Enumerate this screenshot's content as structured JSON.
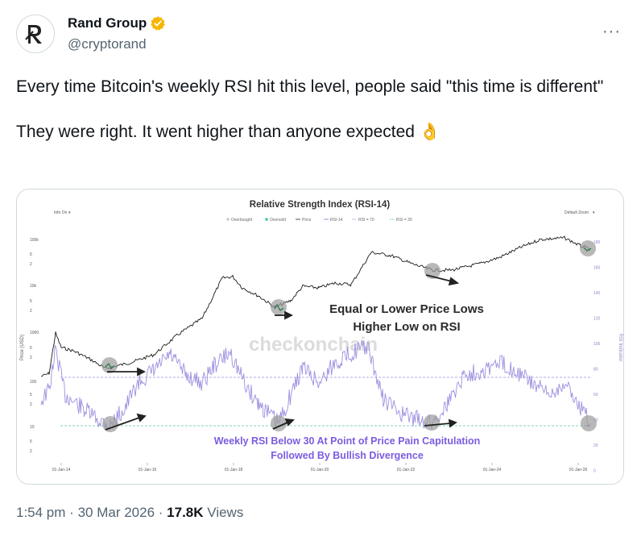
{
  "tweet": {
    "display_name": "Rand Group",
    "handle": "@cryptorand",
    "text": "Every time Bitcoin's weekly RSI hit this level, people said \"this time is different\"\n\nThey were right. It went higher than anyone expected 👌",
    "more_label": "···",
    "icons": {
      "avatar": "rand-logo",
      "verified": "verified-badge-icon",
      "more": "more-icon"
    },
    "colors": {
      "verified": "#f7b500",
      "text": "#0f1419",
      "secondary": "#536471",
      "border": "#cfd9de"
    }
  },
  "meta": {
    "time": "1:54 pm",
    "date": "30 Mar 2026",
    "views_count": "17.8K",
    "views_label": "Views",
    "sep": "·"
  },
  "chart_image": {
    "title": "Relative Strength Index (RSI-14)",
    "info_toggle": "Info On",
    "zoom_toggle": "Default Zoom",
    "legend": [
      "Overbought",
      "Oversold",
      "Price",
      "RSI-14",
      "RSI = 70",
      "RSI = 30"
    ],
    "watermark": "checkonchain",
    "annotation_1_line1": "Equal or Lower Price Lows",
    "annotation_1_line2": "Higher Low on RSI",
    "annotation_2_line1": "Weekly RSI Below 30 At Point of Price Pain Capitulation",
    "annotation_2_line2": "Followed By Bullish Divergence",
    "y_left_label": "Price (USD)",
    "y_right_label": "RSI Indicator",
    "y_left_ticks": [
      "100k",
      "5",
      "2",
      "10k",
      "5",
      "2",
      "1000",
      "5",
      "2",
      "100",
      "5",
      "2",
      "10",
      "5",
      "2"
    ],
    "y_right_ticks": [
      "180",
      "160",
      "140",
      "120",
      "100",
      "80",
      "60",
      "40",
      "20",
      "0"
    ],
    "x_ticks": [
      "01-Jan-14",
      "01-Jan-16",
      "01-Jan-18",
      "01-Jan-20",
      "01-Jan-22",
      "01-Jan-24",
      "01-Jan-26"
    ],
    "colors": {
      "price": "#1a1a1a",
      "rsi": "#9e8fe0",
      "rsi70": "#b9a6e8",
      "rsi30": "#7fd6b8",
      "annotation_purple": "#7b5ce0",
      "circle": "#9a9a9a"
    }
  }
}
